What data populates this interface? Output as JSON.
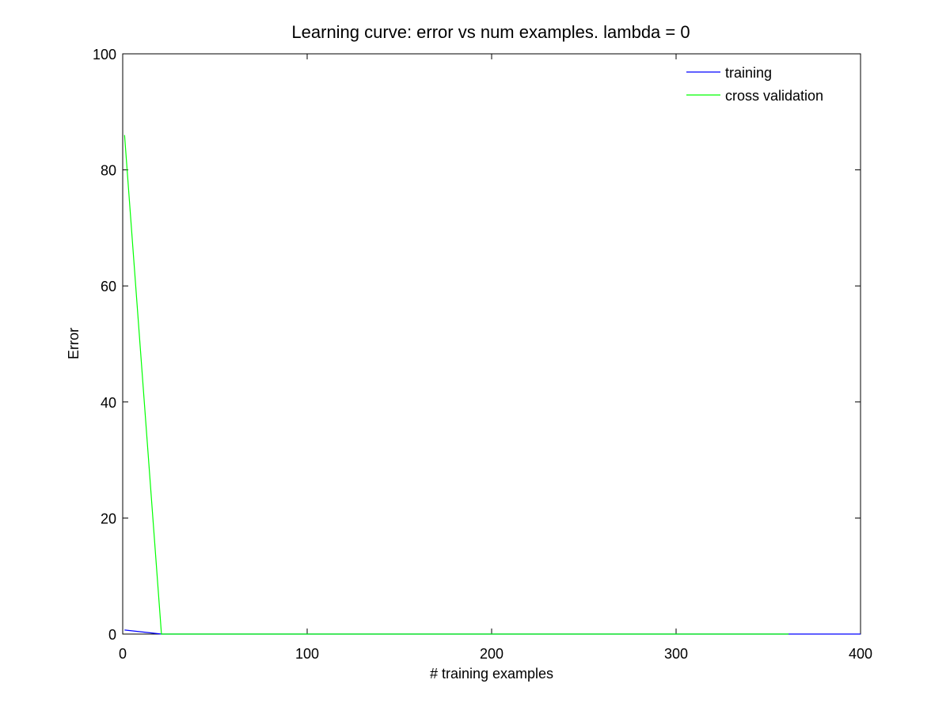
{
  "chart_data": {
    "type": "line",
    "title": "Learning curve: error vs num examples. lambda = 0",
    "xlabel": "# training examples",
    "ylabel": "Error",
    "xlim": [
      0,
      400
    ],
    "ylim": [
      0,
      100
    ],
    "xticks": [
      0,
      100,
      200,
      300,
      400
    ],
    "yticks": [
      0,
      20,
      40,
      60,
      80,
      100
    ],
    "xtick_labels": [
      "0",
      "100",
      "200",
      "300",
      "400"
    ],
    "ytick_labels": [
      "0",
      "20",
      "40",
      "60",
      "80",
      "100"
    ],
    "grid": false,
    "legend_position": "top-right",
    "series": [
      {
        "name": "training",
        "color": "#0000ff",
        "x": [
          1,
          21,
          41,
          61,
          81,
          101,
          121,
          141,
          161,
          181,
          201,
          221,
          241,
          261,
          281,
          301,
          321,
          341,
          361,
          381,
          400
        ],
        "y": [
          0.7,
          0.0,
          0.0,
          0.0,
          0.0,
          0.0,
          0.0,
          0.0,
          0.0,
          0.0,
          0.0,
          0.0,
          0.0,
          0.0,
          0.0,
          0.0,
          0.0,
          0.0,
          0.0,
          0.0,
          0.0
        ]
      },
      {
        "name": "cross validation",
        "color": "#00ff00",
        "x": [
          1,
          21,
          41,
          61,
          81,
          101,
          121,
          141,
          161,
          181,
          201,
          221,
          241,
          261,
          281,
          301,
          321,
          341,
          361
        ],
        "y": [
          86,
          0.0,
          0.0,
          0.0,
          0.0,
          0.0,
          0.0,
          0.0,
          0.0,
          0.0,
          0.0,
          0.0,
          0.0,
          0.0,
          0.0,
          0.0,
          0.0,
          0.0,
          0.0
        ]
      }
    ]
  }
}
